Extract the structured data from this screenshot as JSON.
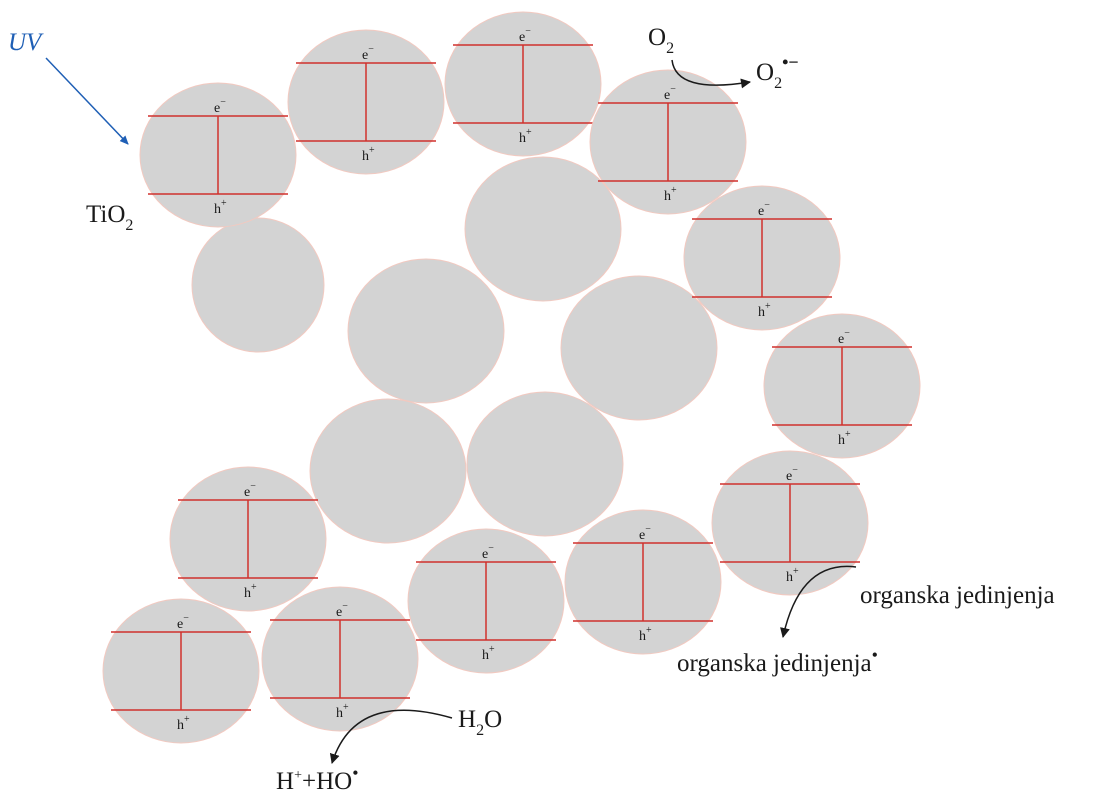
{
  "diagram": {
    "uv_label": "UV",
    "tio2_label": "TiO",
    "tio2_sub": "2",
    "electron_label": "e",
    "electron_sup": "−",
    "hole_label": "h",
    "hole_sup": "+",
    "o2_label": "O",
    "o2_sub": "2",
    "superoxide_label": "O",
    "superoxide_sub": "2",
    "superoxide_sup": "•−",
    "water_label": "H",
    "water_sub": "2",
    "water_tail": "O",
    "hydroxyl_h": "H",
    "hydroxyl_plus": "+",
    "hydroxyl_ho": "+HO",
    "hydroxyl_dot": "•",
    "organic_label": "organska jedinjenja",
    "organic_radical_label": "organska jedinjenja",
    "organic_radical_dot": "•"
  },
  "colors": {
    "particle_fill": "#d3d3d3",
    "particle_stroke": "#f2c9c0",
    "band_line": "#d0312d",
    "uv_arrow": "#1f5fb5",
    "text": "#1a1a1a"
  }
}
